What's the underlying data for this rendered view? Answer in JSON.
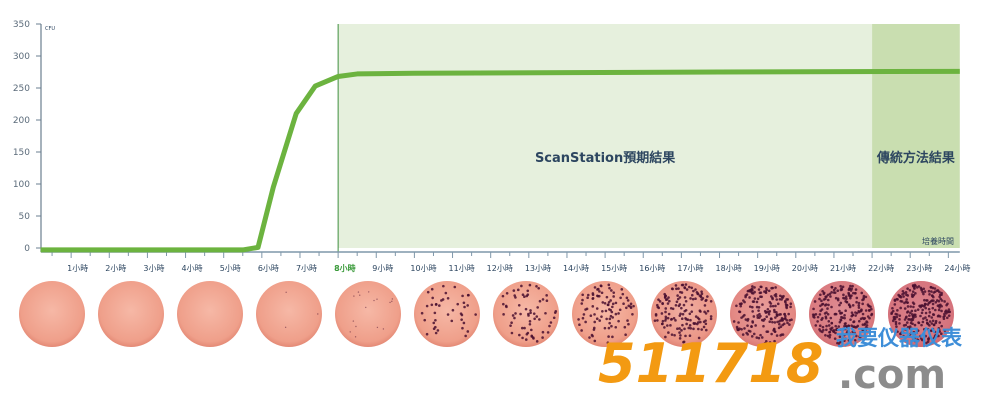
{
  "chart_data": {
    "type": "line",
    "title": "",
    "xlabel": "培養時間",
    "ylabel": "CFU",
    "ylim": [
      0,
      350
    ],
    "xlim": [
      0,
      24.3
    ],
    "yticks": [
      0,
      50,
      100,
      150,
      200,
      250,
      300,
      350
    ],
    "xticks": [
      {
        "h": 1,
        "label": "1小時"
      },
      {
        "h": 2,
        "label": "2小時"
      },
      {
        "h": 3,
        "label": "3小時"
      },
      {
        "h": 4,
        "label": "4小時"
      },
      {
        "h": 5,
        "label": "5小時"
      },
      {
        "h": 6,
        "label": "6小時"
      },
      {
        "h": 7,
        "label": "7小時"
      },
      {
        "h": 8,
        "label": "8小時"
      },
      {
        "h": 9,
        "label": "9小時"
      },
      {
        "h": 10,
        "label": "10小時"
      },
      {
        "h": 11,
        "label": "11小時"
      },
      {
        "h": 12,
        "label": "12小時"
      },
      {
        "h": 13,
        "label": "13小時"
      },
      {
        "h": 14,
        "label": "14小時"
      },
      {
        "h": 15,
        "label": "15小時"
      },
      {
        "h": 16,
        "label": "16小時"
      },
      {
        "h": 17,
        "label": "17小時"
      },
      {
        "h": 18,
        "label": "18小時"
      },
      {
        "h": 19,
        "label": "19小時"
      },
      {
        "h": 20,
        "label": "20小時"
      },
      {
        "h": 21,
        "label": "21小時"
      },
      {
        "h": 22,
        "label": "22小時"
      },
      {
        "h": 23,
        "label": "23小時"
      },
      {
        "h": 24,
        "label": "24小時"
      }
    ],
    "highlight_tick": 8,
    "series": [
      {
        "x": [
          0.2,
          5.5,
          5.9,
          6.3,
          6.9,
          7.4,
          8,
          8.5,
          10,
          14,
          18,
          24.3
        ],
        "y": [
          -3,
          -3,
          1,
          95,
          210,
          253,
          268,
          272,
          273,
          274,
          275,
          276
        ],
        "color": "#6cb33f"
      }
    ],
    "regions": [
      {
        "from": 8,
        "to": 22,
        "label": "ScanStation預期結果",
        "color": "#e6f0dd"
      },
      {
        "from": 22,
        "to": 24.3,
        "label": "傳統方法結果",
        "color": "#c9deb0"
      }
    ],
    "grid": false,
    "dishes": {
      "count": 12,
      "growth": [
        0,
        0,
        0,
        0.1,
        0.25,
        0.4,
        0.5,
        0.6,
        0.75,
        0.85,
        0.95,
        1
      ]
    }
  },
  "watermark": {
    "number": "511718",
    "domain": ".com",
    "cn": "我要仪器仪表"
  }
}
